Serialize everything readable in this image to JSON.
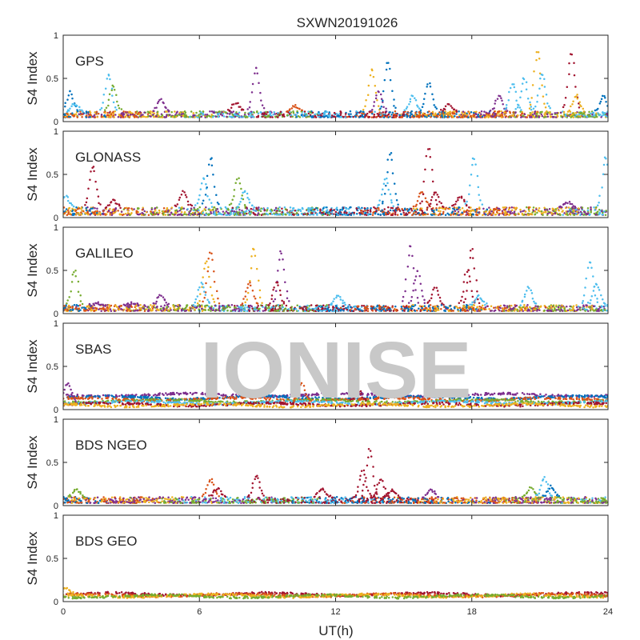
{
  "chart_data": {
    "type": "scatter",
    "title": "SXWN20191026",
    "xlabel": "UT(h)",
    "ylabel": "S4 Index",
    "xlim": [
      0,
      24
    ],
    "ylim": [
      0,
      1
    ],
    "x_ticks": [
      "0",
      "6",
      "12",
      "18",
      "24"
    ],
    "y_ticks": [
      "0",
      "0.5",
      "1"
    ],
    "watermark": "IONISE",
    "colors": [
      "#0072BD",
      "#D95319",
      "#EDB120",
      "#7E2F8E",
      "#77AC30",
      "#4DBEEE",
      "#A2142F"
    ],
    "panels": [
      {
        "label": "GPS",
        "baseline": [
          0.05,
          0.12
        ],
        "spikes": [
          {
            "x": 0.3,
            "y": 0.35,
            "c": 0
          },
          {
            "x": 0.5,
            "y": 0.2,
            "c": 5
          },
          {
            "x": 2.0,
            "y": 0.55,
            "c": 5
          },
          {
            "x": 2.2,
            "y": 0.42,
            "c": 4
          },
          {
            "x": 4.3,
            "y": 0.25,
            "c": 3
          },
          {
            "x": 7.6,
            "y": 0.22,
            "c": 6
          },
          {
            "x": 8.5,
            "y": 0.63,
            "c": 3
          },
          {
            "x": 10.2,
            "y": 0.18,
            "c": 1
          },
          {
            "x": 13.6,
            "y": 0.6,
            "c": 2
          },
          {
            "x": 13.9,
            "y": 0.35,
            "c": 3
          },
          {
            "x": 14.3,
            "y": 0.68,
            "c": 0
          },
          {
            "x": 15.4,
            "y": 0.3,
            "c": 5
          },
          {
            "x": 16.1,
            "y": 0.45,
            "c": 0
          },
          {
            "x": 17.0,
            "y": 0.2,
            "c": 6
          },
          {
            "x": 19.2,
            "y": 0.3,
            "c": 3
          },
          {
            "x": 19.8,
            "y": 0.45,
            "c": 5
          },
          {
            "x": 20.3,
            "y": 0.5,
            "c": 5
          },
          {
            "x": 20.9,
            "y": 0.82,
            "c": 2
          },
          {
            "x": 21.1,
            "y": 0.55,
            "c": 5
          },
          {
            "x": 22.4,
            "y": 0.78,
            "c": 6
          },
          {
            "x": 22.6,
            "y": 0.3,
            "c": 2
          },
          {
            "x": 23.8,
            "y": 0.3,
            "c": 0
          }
        ]
      },
      {
        "label": "GLONASS",
        "baseline": [
          0.03,
          0.12
        ],
        "spikes": [
          {
            "x": 0.1,
            "y": 0.25,
            "c": 5
          },
          {
            "x": 1.3,
            "y": 0.6,
            "c": 6
          },
          {
            "x": 2.2,
            "y": 0.2,
            "c": 6
          },
          {
            "x": 5.3,
            "y": 0.3,
            "c": 6
          },
          {
            "x": 6.2,
            "y": 0.45,
            "c": 5
          },
          {
            "x": 6.5,
            "y": 0.7,
            "c": 0
          },
          {
            "x": 7.7,
            "y": 0.45,
            "c": 4
          },
          {
            "x": 8.0,
            "y": 0.3,
            "c": 5
          },
          {
            "x": 14.4,
            "y": 0.75,
            "c": 0
          },
          {
            "x": 14.2,
            "y": 0.45,
            "c": 5
          },
          {
            "x": 15.8,
            "y": 0.3,
            "c": 1
          },
          {
            "x": 16.1,
            "y": 0.8,
            "c": 6
          },
          {
            "x": 16.4,
            "y": 0.3,
            "c": 6
          },
          {
            "x": 17.5,
            "y": 0.25,
            "c": 6
          },
          {
            "x": 18.1,
            "y": 0.7,
            "c": 5
          },
          {
            "x": 22.2,
            "y": 0.18,
            "c": 3
          },
          {
            "x": 23.9,
            "y": 0.7,
            "c": 5
          }
        ]
      },
      {
        "label": "GALILEO",
        "baseline": [
          0.03,
          0.1
        ],
        "spikes": [
          {
            "x": 0.5,
            "y": 0.5,
            "c": 4
          },
          {
            "x": 1.5,
            "y": 0.12,
            "c": 3
          },
          {
            "x": 3.0,
            "y": 0.12,
            "c": 3
          },
          {
            "x": 4.3,
            "y": 0.22,
            "c": 3
          },
          {
            "x": 6.3,
            "y": 0.6,
            "c": 2
          },
          {
            "x": 6.5,
            "y": 0.72,
            "c": 1
          },
          {
            "x": 6.1,
            "y": 0.35,
            "c": 5
          },
          {
            "x": 8.4,
            "y": 0.75,
            "c": 2
          },
          {
            "x": 8.2,
            "y": 0.35,
            "c": 1
          },
          {
            "x": 9.6,
            "y": 0.72,
            "c": 3
          },
          {
            "x": 9.4,
            "y": 0.35,
            "c": 6
          },
          {
            "x": 12.1,
            "y": 0.2,
            "c": 5
          },
          {
            "x": 15.3,
            "y": 0.78,
            "c": 3
          },
          {
            "x": 15.6,
            "y": 0.5,
            "c": 3
          },
          {
            "x": 16.4,
            "y": 0.3,
            "c": 6
          },
          {
            "x": 18.0,
            "y": 0.75,
            "c": 6
          },
          {
            "x": 17.8,
            "y": 0.5,
            "c": 6
          },
          {
            "x": 18.3,
            "y": 0.2,
            "c": 5
          },
          {
            "x": 20.5,
            "y": 0.3,
            "c": 5
          },
          {
            "x": 23.2,
            "y": 0.6,
            "c": 5
          },
          {
            "x": 23.5,
            "y": 0.35,
            "c": 5
          }
        ]
      },
      {
        "label": "SBAS",
        "bands": [
          {
            "y": 0.17,
            "c": 3
          },
          {
            "y": 0.14,
            "c": 0
          },
          {
            "y": 0.12,
            "c": 1
          },
          {
            "y": 0.1,
            "c": 4
          },
          {
            "y": 0.08,
            "c": 5
          },
          {
            "y": 0.06,
            "c": 6
          },
          {
            "y": 0.05,
            "c": 2
          }
        ],
        "spikes": [
          {
            "x": 0.2,
            "y": 0.3,
            "c": 3
          },
          {
            "x": 10.5,
            "y": 0.3,
            "c": 1
          },
          {
            "x": 13.0,
            "y": 0.22,
            "c": 6
          }
        ]
      },
      {
        "label": "BDS NGEO",
        "baseline": [
          0.03,
          0.1
        ],
        "spikes": [
          {
            "x": 0.6,
            "y": 0.18,
            "c": 4
          },
          {
            "x": 6.5,
            "y": 0.3,
            "c": 1
          },
          {
            "x": 6.8,
            "y": 0.2,
            "c": 6
          },
          {
            "x": 8.5,
            "y": 0.35,
            "c": 6
          },
          {
            "x": 11.4,
            "y": 0.2,
            "c": 6
          },
          {
            "x": 13.2,
            "y": 0.4,
            "c": 6
          },
          {
            "x": 13.5,
            "y": 0.65,
            "c": 6
          },
          {
            "x": 14.0,
            "y": 0.3,
            "c": 6
          },
          {
            "x": 14.5,
            "y": 0.18,
            "c": 6
          },
          {
            "x": 16.2,
            "y": 0.18,
            "c": 3
          },
          {
            "x": 20.6,
            "y": 0.2,
            "c": 4
          },
          {
            "x": 21.2,
            "y": 0.32,
            "c": 5
          },
          {
            "x": 21.5,
            "y": 0.22,
            "c": 0
          }
        ]
      },
      {
        "label": "BDS GEO",
        "bands": [
          {
            "y": 0.085,
            "c": 6
          },
          {
            "y": 0.075,
            "c": 1
          },
          {
            "y": 0.068,
            "c": 2
          },
          {
            "y": 0.062,
            "c": 4
          }
        ],
        "spikes": [
          {
            "x": 0.1,
            "y": 0.15,
            "c": 2
          }
        ]
      }
    ]
  }
}
